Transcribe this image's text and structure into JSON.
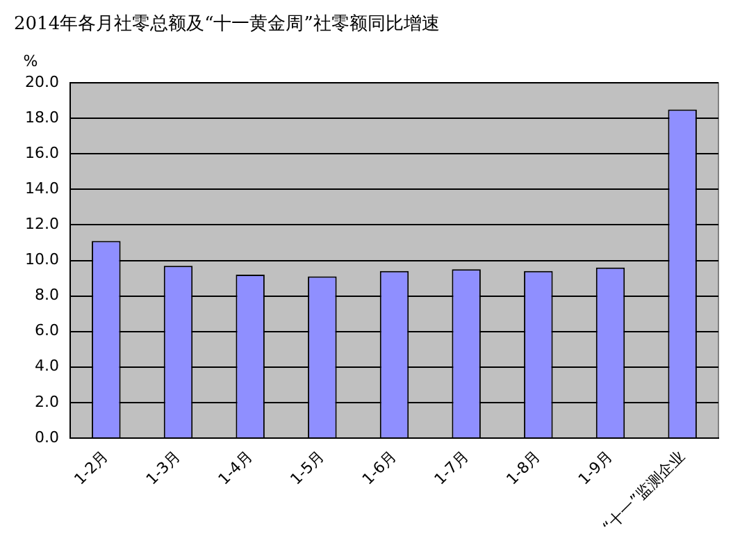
{
  "chart_data": {
    "type": "bar",
    "title": "2014年各月社零总额及“十一黄金周”社零额同比增速",
    "ylabel": "%",
    "categories": [
      "1-2月",
      "1-3月",
      "1-4月",
      "1-5月",
      "1-6月",
      "1-7月",
      "1-8月",
      "1-9月",
      "“十一”监测企业"
    ],
    "values": [
      11.1,
      9.7,
      9.2,
      9.1,
      9.4,
      9.5,
      9.4,
      9.6,
      18.5
    ],
    "color": "#8f8fff",
    "ylim": [
      0,
      20
    ],
    "yticks": [
      {
        "value": 0,
        "label": "0.0"
      },
      {
        "value": 2,
        "label": "2.0"
      },
      {
        "value": 4,
        "label": "4.0"
      },
      {
        "value": 6,
        "label": "6.0"
      },
      {
        "value": 8,
        "label": "8.0"
      },
      {
        "value": 10,
        "label": "10.0"
      },
      {
        "value": 12,
        "label": "12.0"
      },
      {
        "value": 14,
        "label": "14.0"
      },
      {
        "value": 16,
        "label": "16.0"
      },
      {
        "value": 18,
        "label": "18.0"
      },
      {
        "value": 20,
        "label": "20.0"
      }
    ],
    "grid": "y",
    "legend": false
  }
}
